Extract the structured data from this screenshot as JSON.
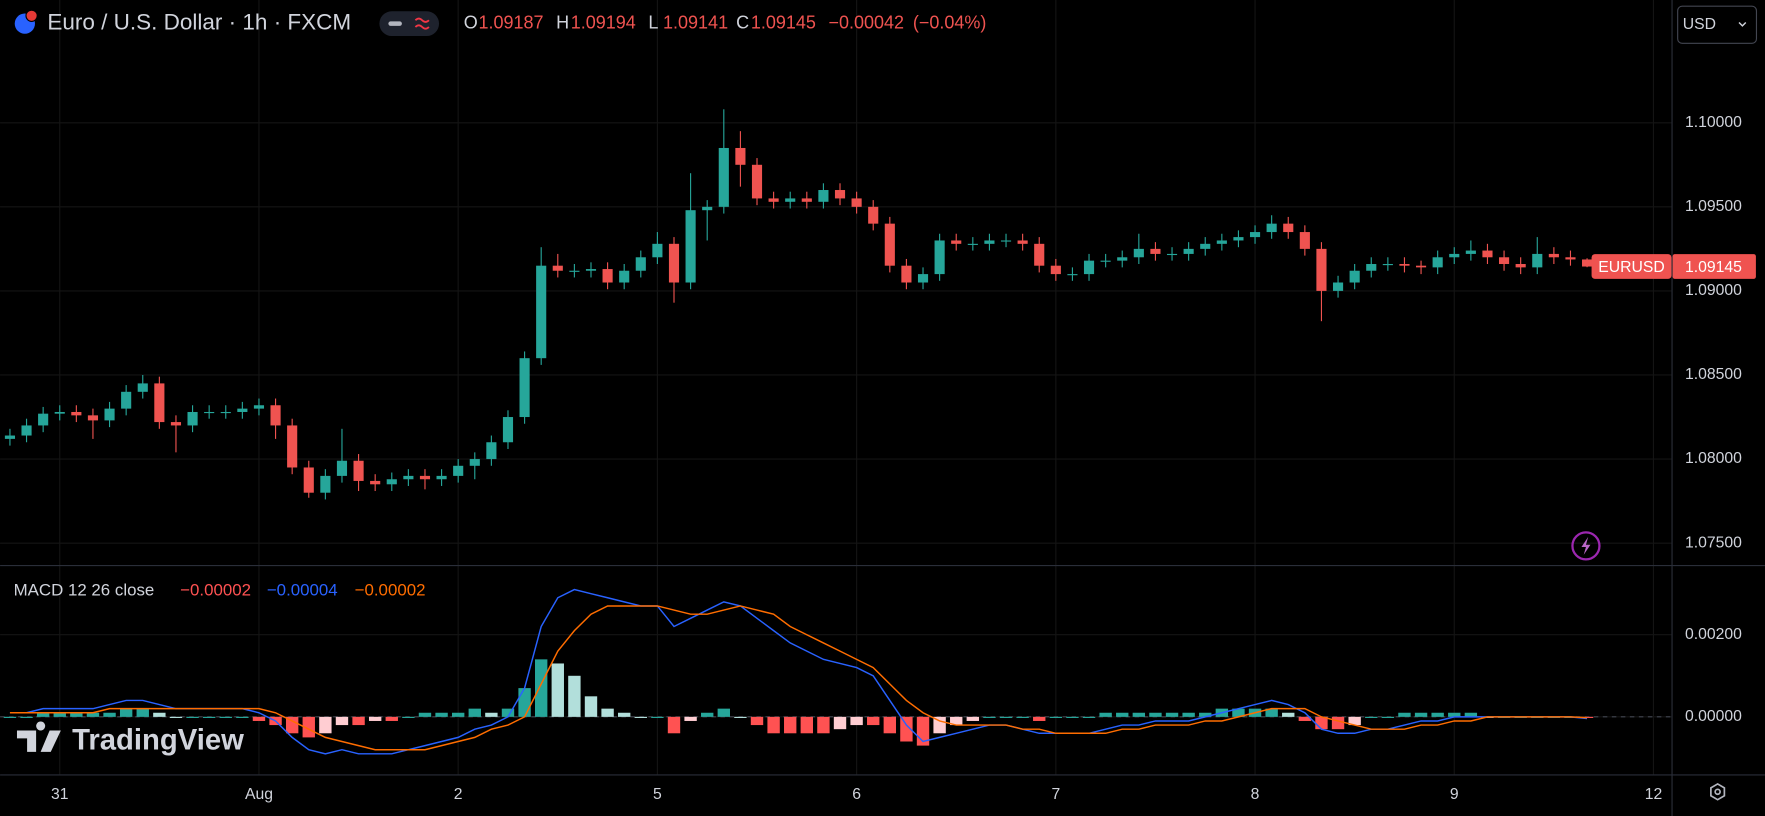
{
  "header": {
    "title": "Euro / U.S. Dollar · 1h · FXCM",
    "change": "−0.00042",
    "change_pct": "(−0.04%)",
    "currency_button": "USD",
    "watermark": "TradingView"
  },
  "chart_data": [
    {
      "type": "candlestick",
      "ohlc_letters": [
        "O",
        "H",
        "L",
        "C"
      ],
      "categories": [
        null,
        null,
        null,
        "31",
        null,
        null,
        null,
        null,
        null,
        null,
        null,
        null,
        null,
        null,
        null,
        "Aug",
        null,
        null,
        null,
        null,
        null,
        null,
        null,
        null,
        null,
        null,
        null,
        "2",
        null,
        null,
        null,
        null,
        null,
        null,
        null,
        null,
        null,
        null,
        null,
        "5",
        null,
        null,
        null,
        null,
        null,
        null,
        null,
        null,
        null,
        null,
        null,
        "6",
        null,
        null,
        null,
        null,
        null,
        null,
        null,
        null,
        null,
        null,
        null,
        "7",
        null,
        null,
        null,
        null,
        null,
        null,
        null,
        null,
        null,
        null,
        null,
        "8",
        null,
        null,
        null,
        null,
        null,
        null,
        null,
        null,
        null,
        null,
        null,
        "9",
        null,
        null,
        null,
        null,
        null,
        null,
        null,
        null,
        null,
        null,
        null,
        "12"
      ],
      "series": [
        {
          "name": "EURUSD",
          "up_color": "#26a69a",
          "down_color": "#ef5350",
          "open": [
            1.0812,
            1.0814,
            1.082,
            1.0827,
            1.0828,
            1.0826,
            1.0823,
            1.083,
            1.084,
            1.0845,
            1.0822,
            1.082,
            1.0828,
            1.0828,
            1.0828,
            1.083,
            1.0832,
            1.082,
            1.0795,
            1.078,
            1.079,
            1.0799,
            1.0787,
            1.0785,
            1.0788,
            1.079,
            1.0788,
            1.079,
            1.0796,
            1.08,
            1.081,
            1.0825,
            1.086,
            1.0915,
            1.0912,
            1.0912,
            1.0913,
            1.0905,
            1.0912,
            1.092,
            1.0928,
            1.0905,
            1.0948,
            1.095,
            1.0985,
            1.0975,
            1.0955,
            1.0953,
            1.0955,
            1.0953,
            1.096,
            1.0955,
            1.095,
            1.094,
            1.0915,
            1.0905,
            1.091,
            1.093,
            1.0928,
            1.0928,
            1.093,
            1.093,
            1.0928,
            1.0915,
            1.091,
            1.091,
            1.0918,
            1.0918,
            1.092,
            1.0925,
            1.0922,
            1.0922,
            1.0925,
            1.0928,
            1.093,
            1.0932,
            1.0935,
            1.094,
            1.0935,
            1.0925,
            1.09,
            1.0905,
            1.0912,
            1.0916,
            1.0916,
            1.0915,
            1.0914,
            1.092,
            1.0922,
            1.0924,
            1.092,
            1.0916,
            1.0914,
            1.0922,
            1.092,
            1.09187,
            null,
            null,
            null,
            null
          ],
          "high": [
            1.0818,
            1.0824,
            1.0831,
            1.0832,
            1.0832,
            1.083,
            1.0834,
            1.0844,
            1.085,
            1.0849,
            1.0826,
            1.0832,
            1.0832,
            1.0832,
            1.0834,
            1.0836,
            1.0836,
            1.0824,
            1.0799,
            1.0794,
            1.0818,
            1.0803,
            1.0791,
            1.0792,
            1.0794,
            1.0794,
            1.0794,
            1.08,
            1.0804,
            1.0814,
            1.0829,
            1.0864,
            1.0926,
            1.0922,
            1.0916,
            1.0917,
            1.0917,
            1.0916,
            1.0924,
            1.0935,
            1.0932,
            1.097,
            1.0954,
            1.1008,
            1.0995,
            1.0979,
            1.0959,
            1.0959,
            1.0959,
            1.0964,
            1.0964,
            1.0959,
            1.0954,
            1.0944,
            1.0919,
            1.0914,
            1.0934,
            1.0934,
            1.0932,
            1.0934,
            1.0934,
            1.0934,
            1.0932,
            1.0919,
            1.0914,
            1.0922,
            1.0922,
            1.0924,
            1.0934,
            1.0929,
            1.0926,
            1.0929,
            1.0932,
            1.0934,
            1.0936,
            1.0939,
            1.0945,
            1.0944,
            1.0939,
            1.0929,
            1.0909,
            1.0916,
            1.092,
            1.092,
            1.092,
            1.0918,
            1.0924,
            1.0926,
            1.093,
            1.0928,
            1.0924,
            1.092,
            1.0932,
            1.0926,
            1.0924,
            1.09194,
            null,
            null,
            null,
            null
          ],
          "low": [
            1.0808,
            1.081,
            1.0816,
            1.0823,
            1.0822,
            1.0812,
            1.0819,
            1.0826,
            1.0836,
            1.0818,
            1.0804,
            1.0816,
            1.0824,
            1.0824,
            1.0824,
            1.0826,
            1.0812,
            1.0791,
            1.0777,
            1.0776,
            1.0786,
            1.0781,
            1.0781,
            1.0781,
            1.0784,
            1.0782,
            1.0784,
            1.0786,
            1.0788,
            1.0796,
            1.0806,
            1.0821,
            1.0856,
            1.0908,
            1.0908,
            1.0908,
            1.0901,
            1.0901,
            1.0908,
            1.0916,
            1.0893,
            1.0901,
            1.093,
            1.0946,
            1.0962,
            1.0951,
            1.0949,
            1.0949,
            1.0949,
            1.0949,
            1.0951,
            1.0946,
            1.0936,
            1.0911,
            1.0901,
            1.0901,
            1.0906,
            1.0924,
            1.0924,
            1.0924,
            1.0926,
            1.0924,
            1.0911,
            1.0906,
            1.0906,
            1.0906,
            1.0914,
            1.0914,
            1.0916,
            1.0918,
            1.0918,
            1.0918,
            1.0921,
            1.0924,
            1.0926,
            1.0928,
            1.0931,
            1.0931,
            1.0921,
            1.0882,
            1.0896,
            1.0901,
            1.0908,
            1.0912,
            1.0911,
            1.091,
            1.091,
            1.0916,
            1.0918,
            1.0916,
            1.0912,
            1.091,
            1.091,
            1.0916,
            1.0915,
            1.09141,
            null,
            null,
            null,
            null
          ],
          "close": [
            1.0814,
            1.082,
            1.0827,
            1.0828,
            1.0826,
            1.0823,
            1.083,
            1.084,
            1.0845,
            1.0822,
            1.082,
            1.0828,
            1.0828,
            1.0828,
            1.083,
            1.0832,
            1.082,
            1.0795,
            1.078,
            1.079,
            1.0799,
            1.0787,
            1.0785,
            1.0788,
            1.079,
            1.0788,
            1.079,
            1.0796,
            1.08,
            1.081,
            1.0825,
            1.086,
            1.0915,
            1.0912,
            1.0912,
            1.0913,
            1.0905,
            1.0912,
            1.092,
            1.0928,
            1.0905,
            1.0948,
            1.095,
            1.0985,
            1.0975,
            1.0955,
            1.0953,
            1.0955,
            1.0953,
            1.096,
            1.0955,
            1.095,
            1.094,
            1.0915,
            1.0905,
            1.091,
            1.093,
            1.0928,
            1.0928,
            1.093,
            1.093,
            1.0928,
            1.0915,
            1.091,
            1.091,
            1.0918,
            1.0918,
            1.092,
            1.0925,
            1.0922,
            1.0922,
            1.0925,
            1.0928,
            1.093,
            1.0932,
            1.0935,
            1.094,
            1.0935,
            1.0925,
            1.09,
            1.0905,
            1.0912,
            1.0916,
            1.0916,
            1.0915,
            1.0914,
            1.092,
            1.0922,
            1.0924,
            1.092,
            1.0916,
            1.0914,
            1.0922,
            1.092,
            1.09187,
            1.09145,
            null,
            null,
            null,
            null
          ]
        }
      ],
      "ylim": [
        1.0737,
        1.1073
      ],
      "yticks": [
        {
          "value": 1.075,
          "label": "1.07500"
        },
        {
          "value": 1.08,
          "label": "1.08000"
        },
        {
          "value": 1.085,
          "label": "1.08500"
        },
        {
          "value": 1.09,
          "label": "1.09000"
        },
        {
          "value": 1.095,
          "label": "1.09500"
        },
        {
          "value": 1.1,
          "label": "1.10000"
        }
      ],
      "grid": true
    },
    {
      "type": "macd",
      "title": "MACD 12 26 close",
      "series": [
        {
          "type": "bar",
          "legend_value": "−0.00002",
          "color": "#ff5252",
          "colors": {
            "pos_up": "#26a69a",
            "pos_down": "#b2dfdb",
            "neg_down": "#ff5252",
            "neg_up": "#ffcdd2"
          },
          "values": [
            0,
            0,
            0.0001,
            0.0001,
            0.0001,
            0.0001,
            0.0001,
            0.0002,
            0.0002,
            0.0001,
            0,
            0,
            0,
            0,
            0,
            -0.0001,
            -0.0002,
            -0.0004,
            -0.0005,
            -0.0004,
            -0.0002,
            -0.0002,
            -0.0001,
            -0.0001,
            0,
            0.0001,
            0.0001,
            0.0001,
            0.0002,
            0.0001,
            0.0002,
            0.0007,
            0.0014,
            0.0013,
            0.001,
            0.0005,
            0.0002,
            0.0001,
            0,
            0,
            -0.0004,
            -0.0001,
            0.0001,
            0.0002,
            0,
            -0.0002,
            -0.0004,
            -0.0004,
            -0.0004,
            -0.0004,
            -0.0003,
            -0.0002,
            -0.0002,
            -0.0004,
            -0.0006,
            -0.0007,
            -0.0004,
            -0.0002,
            -0.0001,
            0,
            0,
            0,
            -0.0001,
            0,
            0,
            0,
            0.0001,
            0.0001,
            0.0001,
            0.0001,
            0.0001,
            0.0001,
            0.0001,
            0.0002,
            0.0002,
            0.0002,
            0.0002,
            0.0001,
            -0.0001,
            -0.0003,
            -0.0003,
            -0.0002,
            0,
            0,
            0.0001,
            0.0001,
            0.0001,
            0.0001,
            0.0001,
            0,
            0,
            0,
            0,
            0,
            0,
            -2e-05,
            null,
            null,
            null,
            null
          ]
        },
        {
          "type": "line",
          "legend_value": "−0.00004",
          "color": "#2962ff",
          "values": [
            0.0001,
            0.0001,
            0.0002,
            0.0002,
            0.0002,
            0.0002,
            0.0003,
            0.0004,
            0.0004,
            0.0003,
            0.0002,
            0.0002,
            0.0002,
            0.0002,
            0.0002,
            0.0001,
            -0.0001,
            -0.0005,
            -0.0008,
            -0.0009,
            -0.0008,
            -0.0009,
            -0.0009,
            -0.0009,
            -0.0008,
            -0.0007,
            -0.0006,
            -0.0005,
            -0.0003,
            -0.0002,
            0,
            0.0007,
            0.0022,
            0.0029,
            0.0031,
            0.003,
            0.0029,
            0.0028,
            0.0027,
            0.0027,
            0.0022,
            0.0024,
            0.0026,
            0.0028,
            0.0027,
            0.0024,
            0.0021,
            0.0018,
            0.0016,
            0.0014,
            0.0013,
            0.0012,
            0.001,
            0.0004,
            -0.0002,
            -0.0006,
            -0.0005,
            -0.0004,
            -0.0003,
            -0.0002,
            -0.0002,
            -0.0003,
            -0.0004,
            -0.0004,
            -0.0004,
            -0.0004,
            -0.0003,
            -0.0002,
            -0.0002,
            -0.0001,
            -0.0001,
            -0.0001,
            0,
            0.0001,
            0.0002,
            0.0003,
            0.0004,
            0.0003,
            0.0001,
            -0.0003,
            -0.0004,
            -0.0004,
            -0.0003,
            -0.0003,
            -0.0002,
            -0.0001,
            -0.0001,
            0,
            0,
            0,
            0,
            0,
            0,
            0,
            0,
            -4e-05,
            null,
            null,
            null,
            null
          ]
        },
        {
          "type": "line",
          "legend_value": "−0.00002",
          "color": "#ff6d00",
          "values": [
            0.0001,
            0.0001,
            0.0001,
            0.0001,
            0.0001,
            0.0001,
            0.0002,
            0.0002,
            0.0002,
            0.0002,
            0.0002,
            0.0002,
            0.0002,
            0.0002,
            0.0002,
            0.0002,
            0.0001,
            -0.0001,
            -0.0003,
            -0.0005,
            -0.0006,
            -0.0007,
            -0.0008,
            -0.0008,
            -0.0008,
            -0.0008,
            -0.0007,
            -0.0006,
            -0.0005,
            -0.0003,
            -0.0002,
            0,
            0.0008,
            0.0016,
            0.0021,
            0.0025,
            0.0027,
            0.0027,
            0.0027,
            0.0027,
            0.0026,
            0.0025,
            0.0025,
            0.0026,
            0.0027,
            0.0026,
            0.0025,
            0.0022,
            0.002,
            0.0018,
            0.0016,
            0.0014,
            0.0012,
            0.0008,
            0.0004,
            0.0001,
            -0.0001,
            -0.0002,
            -0.0002,
            -0.0002,
            -0.0002,
            -0.0003,
            -0.0003,
            -0.0004,
            -0.0004,
            -0.0004,
            -0.0004,
            -0.0003,
            -0.0003,
            -0.0002,
            -0.0002,
            -0.0002,
            -0.0001,
            -0.0001,
            0,
            0.0001,
            0.0002,
            0.0002,
            0.0002,
            0,
            -0.0001,
            -0.0002,
            -0.0003,
            -0.0003,
            -0.0003,
            -0.0002,
            -0.0002,
            -0.0001,
            -0.0001,
            0,
            0,
            0,
            0,
            0,
            0,
            -2e-05,
            null,
            null,
            null,
            null
          ]
        }
      ],
      "ylim": [
        -0.0014,
        0.00367
      ],
      "yticks": [
        {
          "value": 0,
          "label": "0.00000"
        },
        {
          "value": 0.002,
          "label": "0.00200"
        }
      ],
      "grid": true
    }
  ]
}
